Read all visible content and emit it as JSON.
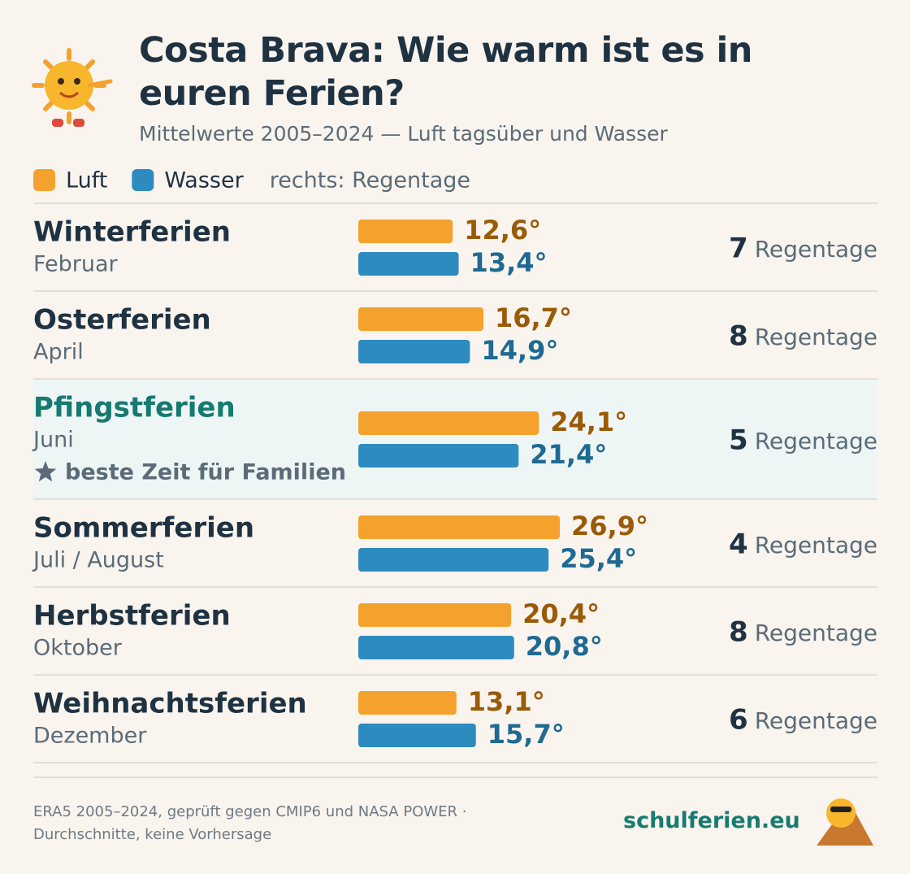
{
  "chart_data": {
    "type": "bar",
    "title": "Costa Brava: Wie warm ist es in euren Ferien?",
    "subtitle": "Mittelwerte 2005–2024 — Luft tagsüber und Wasser",
    "categories": [
      "Winterferien",
      "Osterferien",
      "Pfingstferien",
      "Sommerferien",
      "Herbstferien",
      "Weihnachtsferien"
    ],
    "months": [
      "Februar",
      "April",
      "Juni",
      "Juli / August",
      "Oktober",
      "Dezember"
    ],
    "notes": [
      null,
      null,
      "beste Zeit für Familien",
      null,
      null,
      null
    ],
    "series": [
      {
        "name": "Luft",
        "color": "#f4a22d",
        "label_color": "#9a5a06",
        "values": [
          12.6,
          16.7,
          24.1,
          26.9,
          20.4,
          13.1
        ],
        "value_labels": [
          "12,6°",
          "16,7°",
          "24,1°",
          "26,9°",
          "20,4°",
          "13,1°"
        ]
      },
      {
        "name": "Wasser",
        "color": "#2e8bc0",
        "label_color": "#1f6a92",
        "values": [
          13.4,
          14.9,
          21.4,
          25.4,
          20.8,
          15.7
        ],
        "value_labels": [
          "13,4°",
          "14,9°",
          "21,4°",
          "25,4°",
          "20,8°",
          "15,7°"
        ]
      }
    ],
    "rain_days": [
      7,
      8,
      5,
      4,
      8,
      6
    ],
    "rain_unit": "Regentage",
    "rain_legend": "rechts: Regentage",
    "source": "ERA5 2005–2024, geprüft gegen CMIP6 und NASA POWER · Durchschnitte, keine Vorhersage",
    "brand": "schulferien.eu"
  }
}
